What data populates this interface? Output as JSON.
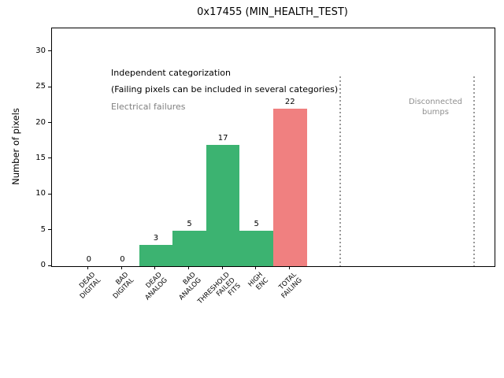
{
  "figure": {
    "title": "0x17455 (MIN_HEALTH_TEST)"
  },
  "chart_data": {
    "type": "bar",
    "title": "0x17455 (MIN_HEALTH_TEST)",
    "xlabel": "",
    "ylabel": "Number of pixels",
    "categories": [
      [
        "DEAD",
        "DIGITAL"
      ],
      [
        "BAD",
        "DIGITAL"
      ],
      [
        "DEAD",
        "ANALOG"
      ],
      [
        "BAD",
        "ANALOG"
      ],
      [
        "THRESHOLD",
        "FAILED",
        "FITS"
      ],
      [
        "HIGH",
        "ENC"
      ],
      [
        "TOTAL",
        "FAILING"
      ]
    ],
    "values": [
      0,
      0,
      3,
      5,
      17,
      5,
      22
    ],
    "bar_value_labels": [
      "0",
      "0",
      "3",
      "5",
      "17",
      "5",
      "22"
    ],
    "bar_colors": [
      "#3cb371",
      "#3cb371",
      "#3cb371",
      "#3cb371",
      "#3cb371",
      "#3cb371",
      "#f08080"
    ],
    "bar_positions": [
      0,
      1,
      2,
      3,
      4,
      5,
      6
    ],
    "bar_width": 1,
    "yticks": [
      0,
      5,
      10,
      15,
      20,
      25,
      30
    ],
    "ylim": [
      0,
      33.3
    ],
    "xlim": [
      -1.1,
      12.1
    ],
    "grid": false,
    "legend": null,
    "section_dividers": {
      "positions_x": [
        7.5,
        11.5
      ],
      "style": "dotted",
      "color": "#999999"
    },
    "annotations": [
      {
        "id": "independent",
        "text": "Independent categorization",
        "color": "#000000"
      },
      {
        "id": "failing-note",
        "text": "(Failing pixels can be included in several categories)",
        "color": "#000000"
      },
      {
        "id": "electrical",
        "text": "Electrical failures",
        "color": "#808080"
      },
      {
        "id": "disconnected",
        "text": "Disconnected\nbumps",
        "color": "#909090"
      }
    ]
  }
}
